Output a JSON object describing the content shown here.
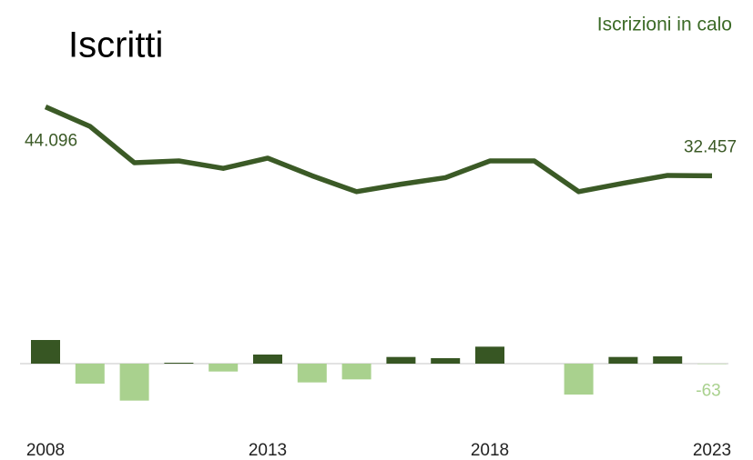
{
  "chart_data": {
    "type": "line-bar",
    "title": "Iscritti",
    "annotation": "Iscrizioni in calo",
    "x": [
      2008,
      2009,
      2010,
      2011,
      2012,
      2013,
      2014,
      2015,
      2016,
      2017,
      2018,
      2019,
      2020,
      2021,
      2022,
      2023
    ],
    "xlim": [
      2008,
      2023
    ],
    "xticks": [
      2008,
      2013,
      2018,
      2023
    ],
    "ylim": [
      -10000,
      56000
    ],
    "y2lim": [
      -10500,
      54000
    ],
    "positive_color": "#375623",
    "negative_color": "#a9d18e",
    "series": [
      {
        "type": "line",
        "color": "#3b5a26",
        "values": [
          44096,
          40800,
          34660,
          34970,
          33710,
          35440,
          32460,
          29780,
          31040,
          32140,
          34970,
          34970,
          29780,
          31200,
          32520,
          32457
        ],
        "value_labels": [
          "44.096",
          null,
          null,
          null,
          null,
          null,
          null,
          null,
          null,
          null,
          null,
          null,
          null,
          null,
          null,
          "32.457"
        ]
      },
      {
        "type": "bar",
        "axis": "y2",
        "values": [
          3900,
          -3300,
          -6100,
          150,
          -1300,
          1500,
          -3100,
          -2600,
          1100,
          900,
          2800,
          0,
          -5100,
          1100,
          1200,
          -63
        ],
        "value_labels": [
          null,
          null,
          null,
          null,
          null,
          null,
          null,
          null,
          null,
          null,
          null,
          null,
          null,
          null,
          null,
          "-63"
        ]
      }
    ]
  }
}
